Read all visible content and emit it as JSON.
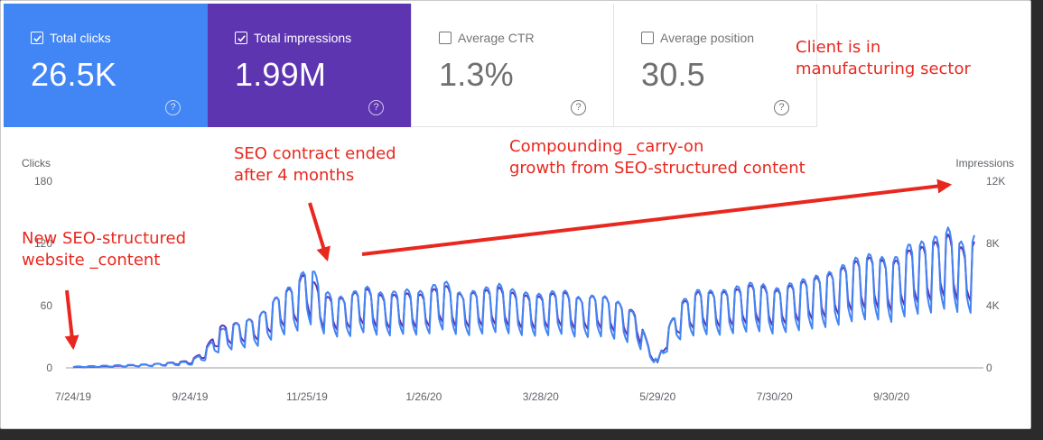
{
  "cards": [
    {
      "label": "Total clicks",
      "value": "26.5K",
      "checked": true,
      "color": "#4285f4"
    },
    {
      "label": "Total impressions",
      "value": "1.99M",
      "checked": true,
      "color": "#5e35b1"
    },
    {
      "label": "Average CTR",
      "value": "1.3%",
      "checked": false
    },
    {
      "label": "Average position",
      "value": "30.5",
      "checked": false
    }
  ],
  "help_glyph": "?",
  "annotations": {
    "client": "Client is in\nmanufacturing sector",
    "new_content": "New SEO-structured\nwebsite _content",
    "contract": "SEO contract ended\nafter 4 months",
    "growth": "Compounding _carry-on\ngrowth from SEO-structured content"
  },
  "annotation_color": "#e8281f",
  "chart_data": {
    "type": "line",
    "x_ticks": [
      "7/24/19",
      "9/24/19",
      "11/25/19",
      "1/26/20",
      "3/28/20",
      "5/29/20",
      "7/30/20",
      "9/30/20"
    ],
    "x_range": [
      "7/24/19",
      "11/13/20"
    ],
    "left_axis": {
      "title": "Clicks",
      "ticks": [
        "0",
        "60",
        "120",
        "180"
      ],
      "ylim": [
        0,
        180
      ]
    },
    "right_axis": {
      "title": "Impressions",
      "ticks": [
        "0",
        "4K",
        "8K",
        "12K"
      ],
      "ylim": [
        0,
        12000
      ]
    },
    "series": [
      {
        "name": "Total clicks",
        "axis": "left",
        "color": "#4285f4",
        "x": [
          "7/24/19",
          "8/14/19",
          "9/4/19",
          "9/24/19",
          "10/1/19",
          "10/10/19",
          "10/20/19",
          "10/30/19",
          "11/10/19",
          "11/20/19",
          "11/25/19",
          "11/28/19",
          "12/5/19",
          "12/15/19",
          "12/25/19",
          "1/5/20",
          "1/15/20",
          "1/26/20",
          "2/5/20",
          "2/15/20",
          "2/25/20",
          "3/6/20",
          "3/16/20",
          "3/28/20",
          "4/8/20",
          "4/18/20",
          "4/28/20",
          "5/8/20",
          "5/18/20",
          "5/24/20",
          "5/29/20",
          "6/3/20",
          "6/10/20",
          "6/20/20",
          "6/30/20",
          "7/10/20",
          "7/20/20",
          "7/30/20",
          "8/10/20",
          "8/20/20",
          "8/30/20",
          "9/10/20",
          "9/20/20",
          "9/30/20",
          "10/10/20",
          "10/20/20",
          "10/30/20",
          "11/8/20",
          "11/13/20"
        ],
        "y": [
          1,
          2,
          3,
          5,
          12,
          30,
          36,
          40,
          58,
          68,
          82,
          78,
          60,
          55,
          65,
          58,
          62,
          60,
          70,
          58,
          62,
          66,
          60,
          58,
          62,
          55,
          58,
          52,
          42,
          18,
          5,
          30,
          52,
          62,
          60,
          64,
          68,
          62,
          68,
          72,
          76,
          86,
          90,
          84,
          98,
          100,
          110,
          96,
          104
        ]
      },
      {
        "name": "Total impressions",
        "axis": "right",
        "color": "#5e35b1",
        "x": [
          "7/24/19",
          "8/14/19",
          "9/4/19",
          "9/24/19",
          "10/1/19",
          "10/10/19",
          "10/20/19",
          "10/30/19",
          "11/10/19",
          "11/20/19",
          "11/25/19",
          "11/28/19",
          "12/5/19",
          "12/15/19",
          "12/25/19",
          "1/5/20",
          "1/15/20",
          "1/26/20",
          "2/5/20",
          "2/15/20",
          "2/25/20",
          "3/6/20",
          "3/16/20",
          "3/28/20",
          "4/8/20",
          "4/18/20",
          "4/28/20",
          "5/8/20",
          "5/18/20",
          "5/24/20",
          "5/29/20",
          "6/3/20",
          "6/10/20",
          "6/20/20",
          "6/30/20",
          "7/10/20",
          "7/20/20",
          "7/30/20",
          "8/10/20",
          "8/20/20",
          "8/30/20",
          "9/10/20",
          "9/20/20",
          "9/30/20",
          "10/10/20",
          "10/20/20",
          "10/30/20",
          "11/8/20",
          "11/13/20"
        ],
        "y": [
          50,
          100,
          200,
          400,
          900,
          2300,
          2500,
          2800,
          4000,
          4600,
          5500,
          4800,
          3900,
          3800,
          4400,
          3900,
          4100,
          4000,
          4600,
          4000,
          4200,
          4400,
          4000,
          3900,
          4200,
          3800,
          4000,
          3600,
          3000,
          1300,
          300,
          2100,
          3500,
          4200,
          4100,
          4300,
          4600,
          4200,
          4600,
          4900,
          5200,
          5800,
          6100,
          5700,
          6500,
          6700,
          7300,
          6400,
          6900
        ]
      }
    ]
  }
}
